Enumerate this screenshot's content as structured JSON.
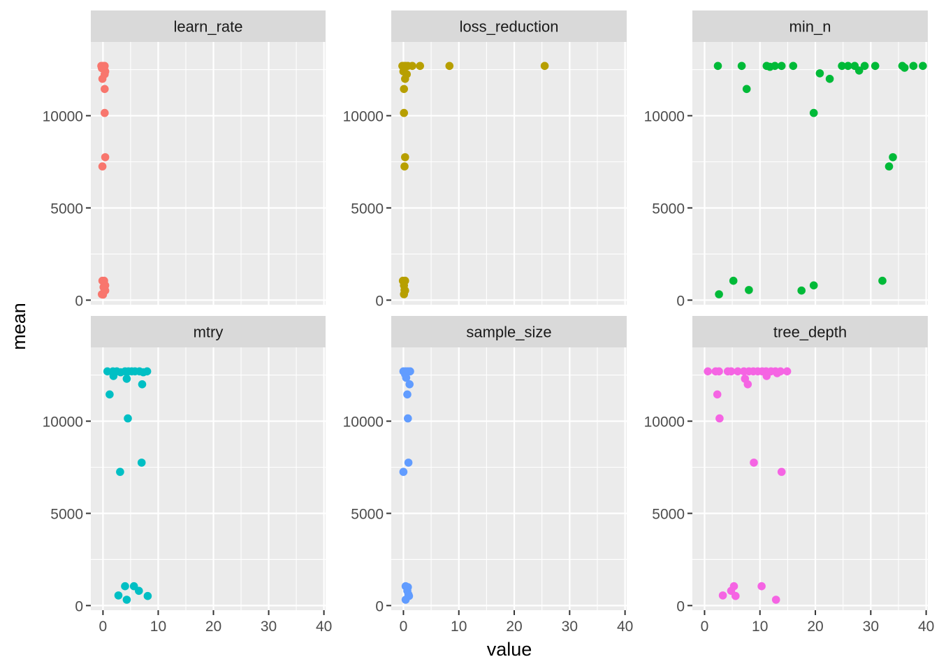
{
  "chart_data": {
    "type": "scatter",
    "xlabel": "value",
    "ylabel": "mean",
    "xlim": [
      -2.2,
      40.3
    ],
    "ylim": [
      -250,
      14000
    ],
    "x_ticks": [
      0,
      10,
      20,
      30,
      40
    ],
    "y_ticks": [
      0,
      5000,
      10000
    ],
    "grid": true,
    "legend": "none",
    "facets": [
      {
        "name": "learn_rate",
        "color": "#F8766D",
        "points": [
          [
            -0.3,
            12700
          ],
          [
            0.0,
            12700
          ],
          [
            0.3,
            12700
          ],
          [
            -0.2,
            12580
          ],
          [
            0.2,
            12600
          ],
          [
            0.4,
            12400
          ],
          [
            0.3,
            12250
          ],
          [
            -0.1,
            12000
          ],
          [
            0.3,
            11450
          ],
          [
            0.3,
            10150
          ],
          [
            0.4,
            7750
          ],
          [
            -0.1,
            7250
          ],
          [
            -0.1,
            1050
          ],
          [
            0.2,
            1050
          ],
          [
            0.4,
            800
          ],
          [
            0.1,
            700
          ],
          [
            0.3,
            550
          ],
          [
            0.4,
            520
          ],
          [
            -0.2,
            320
          ],
          [
            0.0,
            300
          ]
        ]
      },
      {
        "name": "loss_reduction",
        "color": "#B79F00",
        "points": [
          [
            -0.2,
            12700
          ],
          [
            0.1,
            12700
          ],
          [
            0.4,
            12700
          ],
          [
            0.8,
            12700
          ],
          [
            1.6,
            12700
          ],
          [
            3.0,
            12700
          ],
          [
            8.3,
            12700
          ],
          [
            25.5,
            12700
          ],
          [
            0.2,
            12600
          ],
          [
            0.0,
            12400
          ],
          [
            0.6,
            12250
          ],
          [
            0.3,
            12000
          ],
          [
            0.1,
            11450
          ],
          [
            0.1,
            10150
          ],
          [
            0.3,
            7750
          ],
          [
            0.2,
            7250
          ],
          [
            -0.1,
            1050
          ],
          [
            0.3,
            1050
          ],
          [
            0.1,
            800
          ],
          [
            0.2,
            550
          ],
          [
            0.3,
            520
          ],
          [
            0.1,
            320
          ]
        ]
      },
      {
        "name": "min_n",
        "color": "#00BA38",
        "points": [
          [
            2.4,
            12700
          ],
          [
            6.7,
            12700
          ],
          [
            11.2,
            12700
          ],
          [
            11.8,
            12650
          ],
          [
            12.7,
            12700
          ],
          [
            13.9,
            12700
          ],
          [
            16.0,
            12700
          ],
          [
            24.8,
            12700
          ],
          [
            25.9,
            12700
          ],
          [
            27.1,
            12700
          ],
          [
            28.9,
            12700
          ],
          [
            30.8,
            12700
          ],
          [
            35.7,
            12700
          ],
          [
            36.1,
            12600
          ],
          [
            37.7,
            12700
          ],
          [
            39.4,
            12700
          ],
          [
            27.9,
            12450
          ],
          [
            20.8,
            12300
          ],
          [
            22.6,
            12000
          ],
          [
            7.6,
            11450
          ],
          [
            19.7,
            10150
          ],
          [
            34.0,
            7750
          ],
          [
            33.3,
            7250
          ],
          [
            5.2,
            1050
          ],
          [
            32.1,
            1050
          ],
          [
            19.7,
            800
          ],
          [
            8.0,
            550
          ],
          [
            17.5,
            520
          ],
          [
            2.6,
            320
          ]
        ]
      },
      {
        "name": "mtry",
        "color": "#00BFC4",
        "points": [
          [
            0.8,
            12700
          ],
          [
            1.8,
            12700
          ],
          [
            2.5,
            12700
          ],
          [
            3.2,
            12650
          ],
          [
            4.0,
            12700
          ],
          [
            4.6,
            12700
          ],
          [
            5.2,
            12700
          ],
          [
            5.8,
            12700
          ],
          [
            6.6,
            12700
          ],
          [
            7.3,
            12650
          ],
          [
            8.0,
            12700
          ],
          [
            1.9,
            12450
          ],
          [
            4.3,
            12300
          ],
          [
            7.1,
            12000
          ],
          [
            1.2,
            11450
          ],
          [
            4.5,
            10150
          ],
          [
            7.0,
            7750
          ],
          [
            3.1,
            7250
          ],
          [
            4.0,
            1050
          ],
          [
            5.6,
            1050
          ],
          [
            6.5,
            800
          ],
          [
            2.8,
            550
          ],
          [
            8.1,
            520
          ],
          [
            4.3,
            320
          ]
        ]
      },
      {
        "name": "sample_size",
        "color": "#619CFF",
        "points": [
          [
            0.0,
            12700
          ],
          [
            0.4,
            12700
          ],
          [
            0.8,
            12700
          ],
          [
            1.2,
            12700
          ],
          [
            0.3,
            12550
          ],
          [
            0.5,
            12350
          ],
          [
            1.1,
            12000
          ],
          [
            0.7,
            11450
          ],
          [
            0.8,
            10150
          ],
          [
            0.9,
            7750
          ],
          [
            0.0,
            7250
          ],
          [
            0.4,
            1050
          ],
          [
            0.8,
            1000
          ],
          [
            0.7,
            800
          ],
          [
            0.9,
            600
          ],
          [
            1.0,
            520
          ],
          [
            0.4,
            320
          ]
        ]
      },
      {
        "name": "tree_depth",
        "color": "#F564E3",
        "points": [
          [
            0.6,
            12700
          ],
          [
            2.0,
            12700
          ],
          [
            2.6,
            12700
          ],
          [
            4.2,
            12700
          ],
          [
            4.8,
            12700
          ],
          [
            6.0,
            12700
          ],
          [
            7.1,
            12700
          ],
          [
            8.0,
            12700
          ],
          [
            8.8,
            12700
          ],
          [
            9.6,
            12700
          ],
          [
            10.4,
            12700
          ],
          [
            11.1,
            12700
          ],
          [
            12.0,
            12700
          ],
          [
            12.8,
            12700
          ],
          [
            13.7,
            12700
          ],
          [
            14.9,
            12700
          ],
          [
            7.3,
            12300
          ],
          [
            11.2,
            12450
          ],
          [
            13.1,
            12600
          ],
          [
            7.8,
            12000
          ],
          [
            2.3,
            11450
          ],
          [
            2.7,
            10150
          ],
          [
            8.9,
            7750
          ],
          [
            13.9,
            7250
          ],
          [
            5.3,
            1050
          ],
          [
            10.3,
            1050
          ],
          [
            4.8,
            800
          ],
          [
            3.3,
            550
          ],
          [
            5.6,
            520
          ],
          [
            12.9,
            320
          ]
        ]
      }
    ]
  }
}
